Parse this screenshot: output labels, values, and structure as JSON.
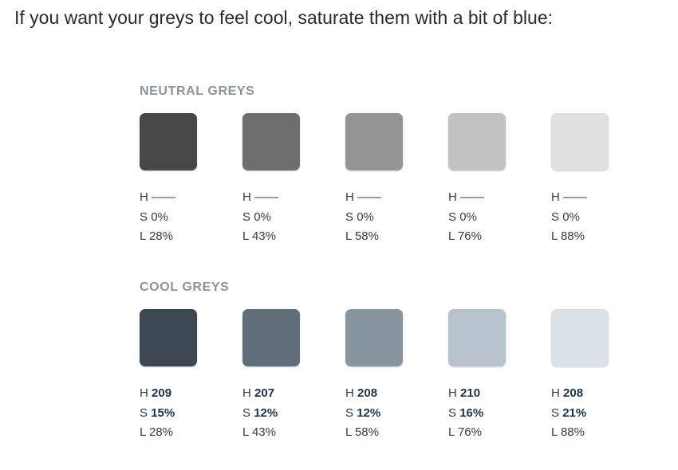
{
  "intro_text": "If you want your greys to feel cool, saturate them with a bit of blue:",
  "neutral": {
    "title": "NEUTRAL GREYS",
    "swatches": [
      {
        "color": "#474747",
        "h": "——",
        "s": "0%",
        "l": "28%"
      },
      {
        "color": "#6e6e6e",
        "h": "——",
        "s": "0%",
        "l": "43%"
      },
      {
        "color": "#949494",
        "h": "——",
        "s": "0%",
        "l": "58%"
      },
      {
        "color": "#c2c2c2",
        "h": "——",
        "s": "0%",
        "l": "76%"
      },
      {
        "color": "#e0e0e0",
        "h": "——",
        "s": "0%",
        "l": "88%"
      }
    ]
  },
  "cool": {
    "title": "COOL GREYS",
    "swatches": [
      {
        "color": "#3d4852",
        "h": "209",
        "s": "15%",
        "l": "28%"
      },
      {
        "color": "#606f7b",
        "h": "207",
        "s": "12%",
        "l": "43%"
      },
      {
        "color": "#8795a1",
        "h": "208",
        "s": "12%",
        "l": "58%"
      },
      {
        "color": "#b8c2cc",
        "h": "210",
        "s": "16%",
        "l": "76%"
      },
      {
        "color": "#dae1e7",
        "h": "208",
        "s": "21%",
        "l": "88%"
      }
    ]
  },
  "labels": {
    "h": "H",
    "s": "S",
    "l": "L"
  }
}
